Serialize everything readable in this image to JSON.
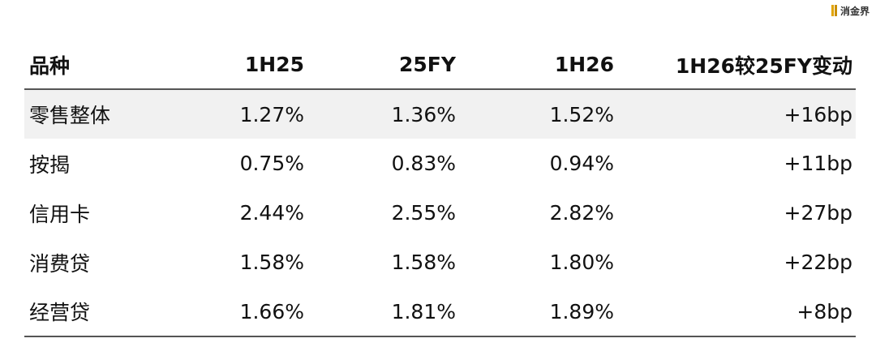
{
  "watermark": {
    "text": "消金界"
  },
  "table": {
    "headers": [
      "品种",
      "1H25",
      "25FY",
      "1H26",
      "1H26较25FY变动"
    ],
    "rows": [
      [
        "零售整体",
        "1.27%",
        "1.36%",
        "1.52%",
        "+16bp"
      ],
      [
        "按揭",
        "0.75%",
        "0.83%",
        "0.94%",
        "+11bp"
      ],
      [
        "信用卡",
        "2.44%",
        "2.55%",
        "2.82%",
        "+27bp"
      ],
      [
        "消费贷",
        "1.58%",
        "1.58%",
        "1.80%",
        "+22bp"
      ],
      [
        "经营贷",
        "1.66%",
        "1.81%",
        "1.89%",
        "+8bp"
      ]
    ]
  },
  "colors": {
    "shaded_row": "#f1f1f1",
    "rule": "#555555",
    "watermark_accent": "#e2a400"
  }
}
